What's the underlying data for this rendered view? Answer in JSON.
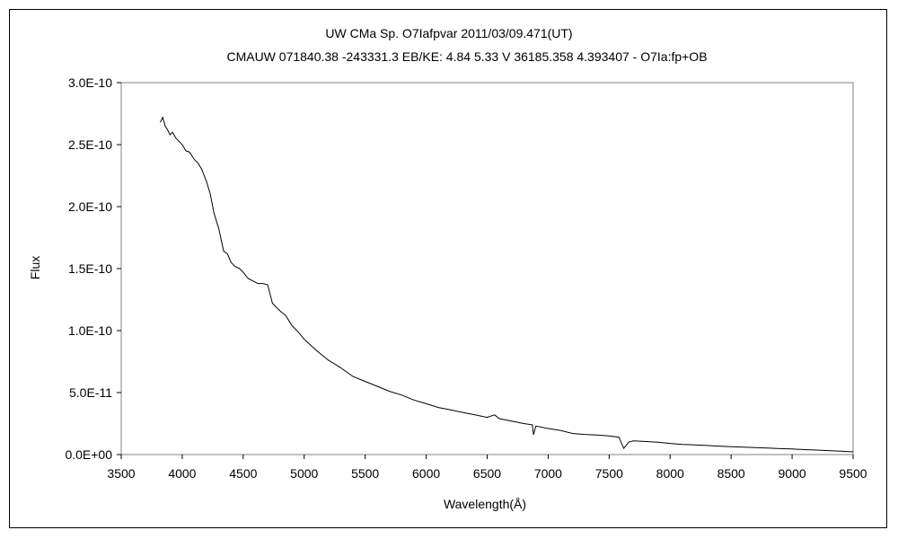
{
  "chart_data": {
    "type": "line",
    "title": "UW CMa    Sp. O7Iafpvar    2011/03/09.471(UT)",
    "subtitle": "CMAUW 071840.38 -243331.3 EB/KE: 4.84 5.33 V 36185.358 4.393407 - O7Ia:fp+OB",
    "xlabel": "Wavelength(Å)",
    "ylabel": "Flux",
    "xlim": [
      3500,
      9500
    ],
    "ylim": [
      0,
      3e-10
    ],
    "x_ticks": [
      "3500",
      "4000",
      "4500",
      "5000",
      "5500",
      "6000",
      "6500",
      "7000",
      "7500",
      "8000",
      "8500",
      "9000",
      "9500"
    ],
    "y_ticks": [
      "0.0E+00",
      "5.0E-11",
      "1.0E-10",
      "1.5E-10",
      "2.0E-10",
      "2.5E-10",
      "3.0E-10"
    ],
    "grid": false,
    "legend": "none",
    "series": [
      {
        "color": "#000000",
        "x": [
          3820,
          3840,
          3860,
          3880,
          3900,
          3920,
          3950,
          3980,
          4000,
          4030,
          4060,
          4100,
          4130,
          4160,
          4200,
          4230,
          4260,
          4300,
          4340,
          4370,
          4400,
          4430,
          4470,
          4500,
          4540,
          4580,
          4620,
          4660,
          4700,
          4740,
          4800,
          4850,
          4880,
          4900,
          4950,
          5000,
          5100,
          5200,
          5300,
          5400,
          5500,
          5600,
          5700,
          5800,
          5900,
          6000,
          6100,
          6200,
          6300,
          6400,
          6500,
          6560,
          6600,
          6700,
          6800,
          6870,
          6880,
          6900,
          7000,
          7100,
          7200,
          7300,
          7400,
          7500,
          7580,
          7620,
          7660,
          7700,
          7800,
          7900,
          8000,
          8100,
          8200,
          8300,
          8400,
          8500,
          8600,
          8700,
          8800,
          8900,
          9000,
          9100,
          9200,
          9300,
          9400,
          9500
        ],
        "y": [
          2.68e-10,
          2.72e-10,
          2.65e-10,
          2.62e-10,
          2.58e-10,
          2.6e-10,
          2.55e-10,
          2.52e-10,
          2.5e-10,
          2.45e-10,
          2.44e-10,
          2.38e-10,
          2.35e-10,
          2.3e-10,
          2.2e-10,
          2.1e-10,
          1.95e-10,
          1.82e-10,
          1.64e-10,
          1.62e-10,
          1.55e-10,
          1.52e-10,
          1.5e-10,
          1.47e-10,
          1.42e-10,
          1.4e-10,
          1.38e-10,
          1.38e-10,
          1.37e-10,
          1.22e-10,
          1.16e-10,
          1.12e-10,
          1.07e-10,
          1.04e-10,
          9.9e-11,
          9.3e-11,
          8.4e-11,
          7.6e-11,
          7e-11,
          6.3e-11,
          5.9e-11,
          5.5e-11,
          5.1e-11,
          4.8e-11,
          4.4e-11,
          4.1e-11,
          3.8e-11,
          3.6e-11,
          3.4e-11,
          3.2e-11,
          3e-11,
          3.2e-11,
          2.9e-11,
          2.7e-11,
          2.5e-11,
          2.4e-11,
          1.6e-11,
          2.3e-11,
          2.1e-11,
          1.95e-11,
          1.7e-11,
          1.62e-11,
          1.58e-11,
          1.5e-11,
          1.4e-11,
          5e-12,
          1e-11,
          1.1e-11,
          1.05e-11,
          1e-11,
          9e-12,
          8.2e-12,
          7.8e-12,
          7.3e-12,
          6.8e-12,
          6.3e-12,
          6e-12,
          5.6e-12,
          5.2e-12,
          4.8e-12,
          4.5e-12,
          4e-12,
          3.6e-12,
          3.2e-12,
          2.7e-12,
          2.2e-12
        ]
      }
    ]
  }
}
